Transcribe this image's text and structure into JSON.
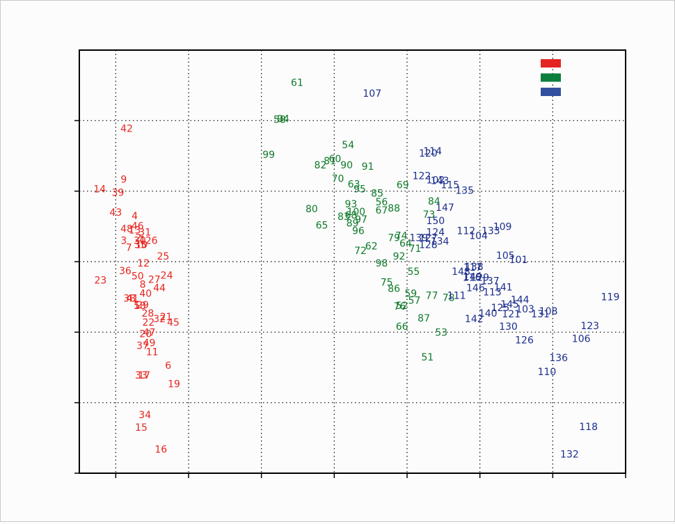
{
  "chart_data": {
    "type": "scatter",
    "legend": "upper right",
    "grid": true,
    "xlim": [
      -0.5,
      7
    ],
    "ylim": [
      0,
      6
    ],
    "xticks": [
      0,
      1,
      2,
      3,
      4,
      5,
      6,
      7
    ],
    "yticks": [
      0,
      1,
      2,
      3,
      4,
      5
    ],
    "series": [
      {
        "color": "#e8251f",
        "legend_color": "#e52421",
        "labels": [
          "1",
          "2",
          "3",
          "4",
          "5",
          "6",
          "7",
          "8",
          "9",
          "10",
          "11",
          "12",
          "13",
          "14",
          "15",
          "16",
          "17",
          "18",
          "19",
          "20",
          "21",
          "22",
          "23",
          "24",
          "25",
          "26",
          "27",
          "28",
          "29",
          "30",
          "31",
          "32",
          "33",
          "34",
          "35",
          "36",
          "37",
          "38",
          "39",
          "40",
          "41",
          "42",
          "43",
          "44",
          "45",
          "46",
          "47",
          "48",
          "49",
          "50"
        ],
        "x": [
          0.37,
          0.31,
          0.11,
          0.26,
          0.29,
          0.72,
          0.18,
          0.37,
          0.11,
          0.35,
          0.5,
          0.38,
          0.26,
          -0.22,
          0.35,
          0.62,
          0.39,
          0.33,
          0.8,
          0.41,
          0.69,
          0.45,
          -0.21,
          0.7,
          0.65,
          0.49,
          0.53,
          0.44,
          0.37,
          0.33,
          0.4,
          0.6,
          0.35,
          0.4,
          0.34,
          0.13,
          0.37,
          0.19,
          0.03,
          0.41,
          0.23,
          0.15,
          0.0,
          0.6,
          0.79,
          0.3,
          0.46,
          0.15,
          0.46,
          0.3
        ],
        "y": [
          3.3,
          3.33,
          3.29,
          3.64,
          2.37,
          1.52,
          3.19,
          2.67,
          4.16,
          3.23,
          1.71,
          2.97,
          3.44,
          4.02,
          0.64,
          0.33,
          1.38,
          2.37,
          1.26,
          1.97,
          2.21,
          2.13,
          2.73,
          2.8,
          3.07,
          3.29,
          2.74,
          2.26,
          2.38,
          3.29,
          3.41,
          2.18,
          1.38,
          0.82,
          3.23,
          2.86,
          1.8,
          2.47,
          3.97,
          2.54,
          2.47,
          4.88,
          3.69,
          2.62,
          2.13,
          3.5,
          1.99,
          3.46,
          1.84,
          2.79
        ]
      },
      {
        "color": "#0f7a2a",
        "legend_color": "#0d7e3e",
        "labels": [
          "51",
          "52",
          "53",
          "54",
          "55",
          "56",
          "57",
          "58",
          "59",
          "60",
          "61",
          "62",
          "63",
          "64",
          "65",
          "66",
          "67",
          "68",
          "69",
          "70",
          "71",
          "72",
          "73",
          "74",
          "75",
          "76",
          "77",
          "78",
          "79",
          "80",
          "81",
          "82",
          "83",
          "84",
          "85",
          "86",
          "87",
          "88",
          "89",
          "90",
          "91",
          "92",
          "93",
          "94",
          "95",
          "96",
          "97",
          "98",
          "99",
          "100"
        ],
        "x": [
          4.28,
          3.93,
          4.47,
          3.19,
          4.09,
          3.65,
          4.1,
          2.25,
          4.05,
          3.01,
          2.49,
          3.51,
          3.27,
          3.98,
          2.83,
          3.93,
          3.65,
          3.23,
          3.94,
          3.05,
          4.11,
          3.36,
          4.3,
          3.92,
          3.72,
          3.9,
          4.34,
          4.57,
          3.82,
          2.69,
          2.94,
          2.81,
          3.13,
          4.37,
          3.59,
          3.82,
          4.23,
          3.82,
          3.25,
          3.17,
          3.46,
          3.89,
          3.23,
          2.3,
          3.35,
          3.33,
          3.37,
          3.65,
          2.1,
          3.3
        ],
        "y": [
          1.64,
          2.37,
          1.99,
          4.65,
          2.85,
          3.84,
          2.44,
          5.01,
          2.54,
          4.45,
          5.53,
          3.21,
          4.09,
          3.25,
          3.51,
          2.07,
          3.72,
          3.65,
          4.08,
          4.17,
          3.18,
          3.15,
          3.66,
          3.36,
          2.7,
          2.36,
          2.51,
          2.48,
          3.33,
          3.74,
          4.42,
          4.36,
          3.63,
          3.85,
          3.96,
          2.61,
          2.19,
          3.75,
          3.54,
          4.36,
          4.34,
          3.07,
          3.81,
          5.02,
          4.02,
          3.43,
          3.59,
          2.97,
          4.51,
          3.7
        ]
      },
      {
        "color": "#1c2e8c",
        "legend_color": "#3250a0",
        "labels": [
          "101",
          "102",
          "103",
          "104",
          "105",
          "106",
          "107",
          "108",
          "109",
          "110",
          "111",
          "112",
          "113",
          "114",
          "115",
          "116",
          "117",
          "118",
          "119",
          "120",
          "121",
          "122",
          "123",
          "124",
          "125",
          "126",
          "127",
          "128",
          "129",
          "130",
          "131",
          "132",
          "133",
          "134",
          "135",
          "136",
          "137",
          "138",
          "139",
          "140",
          "141",
          "142",
          "143",
          "144",
          "145",
          "146",
          "147",
          "148",
          "149",
          "150"
        ],
        "x": [
          5.53,
          4.39,
          5.62,
          4.98,
          5.35,
          6.39,
          3.52,
          5.94,
          5.31,
          5.92,
          4.68,
          4.81,
          5.17,
          4.35,
          4.59,
          4.89,
          4.9,
          6.49,
          6.79,
          4.29,
          5.43,
          4.2,
          6.51,
          4.39,
          5.28,
          5.61,
          4.29,
          4.29,
          5.0,
          5.39,
          5.83,
          6.23,
          5.15,
          4.45,
          4.79,
          6.08,
          5.14,
          4.92,
          4.16,
          5.11,
          5.32,
          4.92,
          4.45,
          5.55,
          5.41,
          4.94,
          4.52,
          4.74,
          4.9,
          4.39
        ],
        "y": [
          3.02,
          4.15,
          2.32,
          3.36,
          3.08,
          1.9,
          5.38,
          2.29,
          3.49,
          1.43,
          2.51,
          3.43,
          2.56,
          4.56,
          4.08,
          2.77,
          2.91,
          0.65,
          2.49,
          4.53,
          2.25,
          4.21,
          2.08,
          3.41,
          2.34,
          1.88,
          3.33,
          3.23,
          2.77,
          2.07,
          2.25,
          0.26,
          3.43,
          3.28,
          4.0,
          1.63,
          2.72,
          2.92,
          3.33,
          2.26,
          2.63,
          2.18,
          4.14,
          2.45,
          2.39,
          2.62,
          3.76,
          2.85,
          2.78,
          3.57
        ]
      }
    ]
  }
}
